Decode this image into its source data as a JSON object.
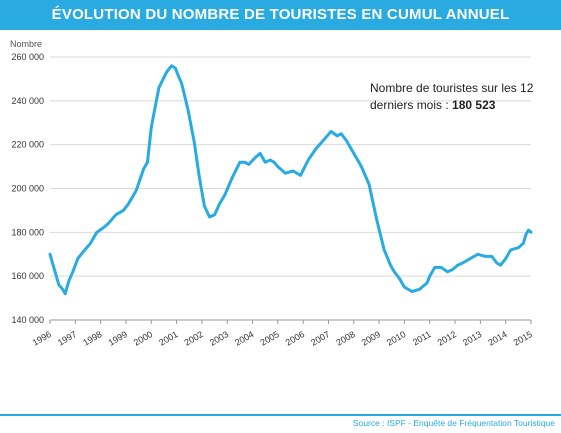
{
  "header": {
    "title": "ÉVOLUTION DU NOMBRE DE TOURISTES EN CUMUL ANNUEL"
  },
  "footer": {
    "source": "Source : ISPF - Enquête de Fréquentation Touristique"
  },
  "colors": {
    "banner": "#29ABE2",
    "line": "#29ABE2",
    "grid": "#d9d9d9"
  },
  "chart_data": {
    "type": "line",
    "title": "ÉVOLUTION DU NOMBRE DE TOURISTES EN CUMUL ANNUEL",
    "ylabel": "Nombre",
    "xlabel": "",
    "ylim": [
      140000,
      260000
    ],
    "xlim": [
      1996,
      2015
    ],
    "grid": true,
    "yticks": [
      140000,
      160000,
      180000,
      200000,
      220000,
      240000,
      260000
    ],
    "ytick_labels": [
      "140 000",
      "160 000",
      "180 000",
      "200 000",
      "220 000",
      "240 000",
      "260 000"
    ],
    "xtick_labels": [
      "1996",
      "1997",
      "1998",
      "1999",
      "2000",
      "2001",
      "2002",
      "2003",
      "2004",
      "2005",
      "2006",
      "2007",
      "2008",
      "2009",
      "2010",
      "2011",
      "2012",
      "2013",
      "2014",
      "2015"
    ],
    "annotation": {
      "text": "Nombre de touristes sur les 12 derniers mois :",
      "value": "180 523"
    },
    "series": [
      {
        "x": [
          1996.0,
          1996.15,
          1996.35,
          1996.5,
          1996.6,
          1996.75,
          1996.9,
          1997.1,
          1997.3,
          1997.6,
          1997.85,
          1998.1,
          1998.3,
          1998.6,
          1998.9,
          1999.1,
          1999.4,
          1999.7,
          1999.85,
          2000.0,
          2000.3,
          2000.6,
          2000.8,
          2000.95,
          2001.05,
          2001.2,
          2001.45,
          2001.7,
          2001.9,
          2002.1,
          2002.3,
          2002.5,
          2002.7,
          2002.9,
          2003.2,
          2003.5,
          2003.7,
          2003.85,
          2004.1,
          2004.3,
          2004.5,
          2004.7,
          2004.85,
          2005.0,
          2005.3,
          2005.6,
          2005.9,
          2006.2,
          2006.5,
          2006.8,
          2007.1,
          2007.35,
          2007.5,
          2007.7,
          2008.0,
          2008.3,
          2008.6,
          2008.9,
          2009.2,
          2009.45,
          2009.6,
          2009.8,
          2010.0,
          2010.3,
          2010.6,
          2010.9,
          2011.0,
          2011.2,
          2011.45,
          2011.7,
          2011.9,
          2012.1,
          2012.3,
          2012.6,
          2012.9,
          2013.2,
          2013.45,
          2013.65,
          2013.8,
          2014.0,
          2014.2,
          2014.5,
          2014.7,
          2014.8,
          2014.9,
          2015.0
        ],
        "y": [
          170000,
          164000,
          156000,
          154000,
          152000,
          158000,
          162000,
          168000,
          171000,
          175000,
          180000,
          182000,
          184000,
          188000,
          190000,
          193000,
          199000,
          209000,
          212000,
          228000,
          246000,
          253000,
          256000,
          255000,
          252000,
          248000,
          236000,
          221000,
          205000,
          192000,
          187000,
          188000,
          193000,
          197000,
          205000,
          212000,
          212000,
          211000,
          214000,
          216000,
          212000,
          213000,
          212000,
          210000,
          207000,
          208000,
          206000,
          213000,
          218000,
          222000,
          226000,
          224000,
          225000,
          222000,
          216000,
          210000,
          202000,
          186000,
          172000,
          165000,
          162000,
          159000,
          155000,
          153000,
          154000,
          157000,
          160000,
          164000,
          164000,
          162000,
          163000,
          165000,
          166000,
          168000,
          170000,
          169000,
          169000,
          166000,
          165000,
          168000,
          172000,
          173000,
          175000,
          179000,
          181000,
          180000
        ]
      }
    ]
  }
}
